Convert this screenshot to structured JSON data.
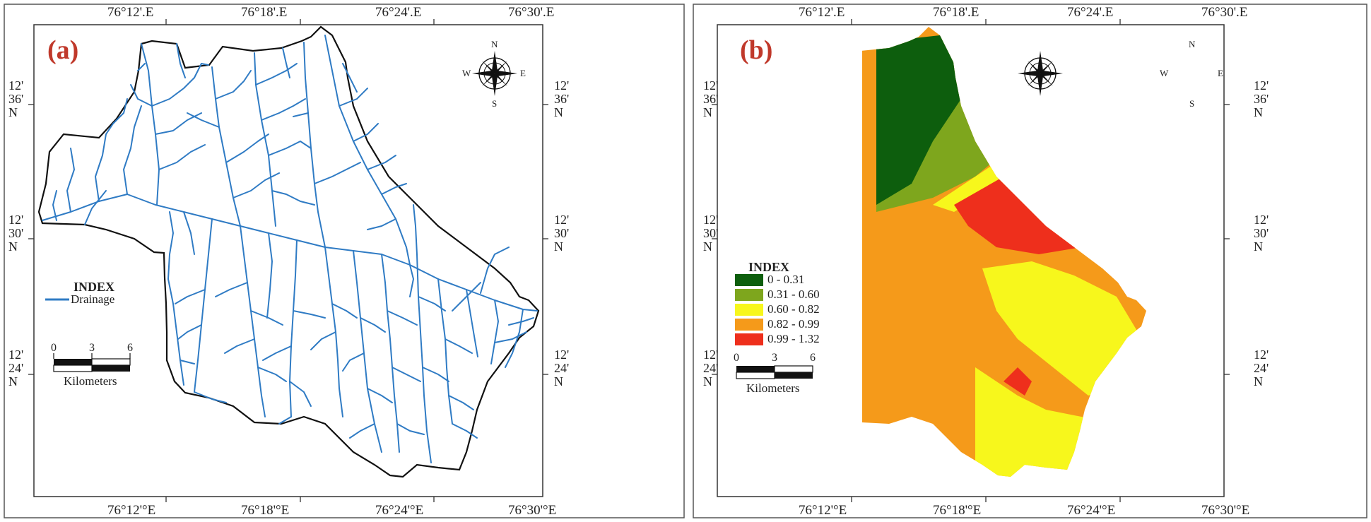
{
  "panel_a": {
    "label": "(a)",
    "top_longitudes": [
      "76°12'.E",
      "76°18'.E",
      "76°24'.E",
      "76°30'.E"
    ],
    "bottom_longitudes": [
      "76°12'°E",
      "76°18'°E",
      "76°24'°E",
      "76°30'°E"
    ],
    "latitudes": [
      {
        "deg": "12'",
        "min": "36'",
        "hemi": "N"
      },
      {
        "deg": "12'",
        "min": "30'",
        "hemi": "N"
      },
      {
        "deg": "12'",
        "min": "24'",
        "hemi": "N"
      }
    ],
    "compass": {
      "n": "N",
      "s": "S",
      "e": "E",
      "w": "W"
    },
    "legend": {
      "title": "INDEX",
      "items": [
        {
          "label": "Drainage",
          "color": "#2f7bc4"
        }
      ]
    },
    "scale": {
      "ticks": [
        "0",
        "3",
        "6"
      ],
      "units": "Kilometers"
    },
    "colors": {
      "drainage": "#2f7bc4",
      "boundary": "#111111"
    }
  },
  "panel_b": {
    "label": "(b)",
    "top_longitudes": [
      "76°12'.E",
      "76°18'.E",
      "76°24'.E",
      "76°30'.E"
    ],
    "bottom_longitudes": [
      "76°12'°E",
      "76°18'°E",
      "76°24'°E",
      "76°30'°E"
    ],
    "latitudes": [
      {
        "deg": "12'",
        "min": "36'",
        "hemi": "N"
      },
      {
        "deg": "12'",
        "min": "30'",
        "hemi": "N"
      },
      {
        "deg": "12'",
        "min": "24'",
        "hemi": "N"
      }
    ],
    "compass": {
      "n": "N",
      "s": "S",
      "e": "E",
      "w": "W"
    },
    "legend": {
      "title": "INDEX",
      "items": [
        {
          "label": "0 - 0.31",
          "color": "#0d5e0d"
        },
        {
          "label": "0.31 - 0.60",
          "color": "#7ea61d"
        },
        {
          "label": "0.60 - 0.82",
          "color": "#f7f71c"
        },
        {
          "label": "0.82 - 0.99",
          "color": "#f59a1a"
        },
        {
          "label": "0.99 - 1.32",
          "color": "#ee2f1c"
        }
      ]
    },
    "scale": {
      "ticks": [
        "0",
        "3",
        "6"
      ],
      "units": "Kilometers"
    }
  }
}
